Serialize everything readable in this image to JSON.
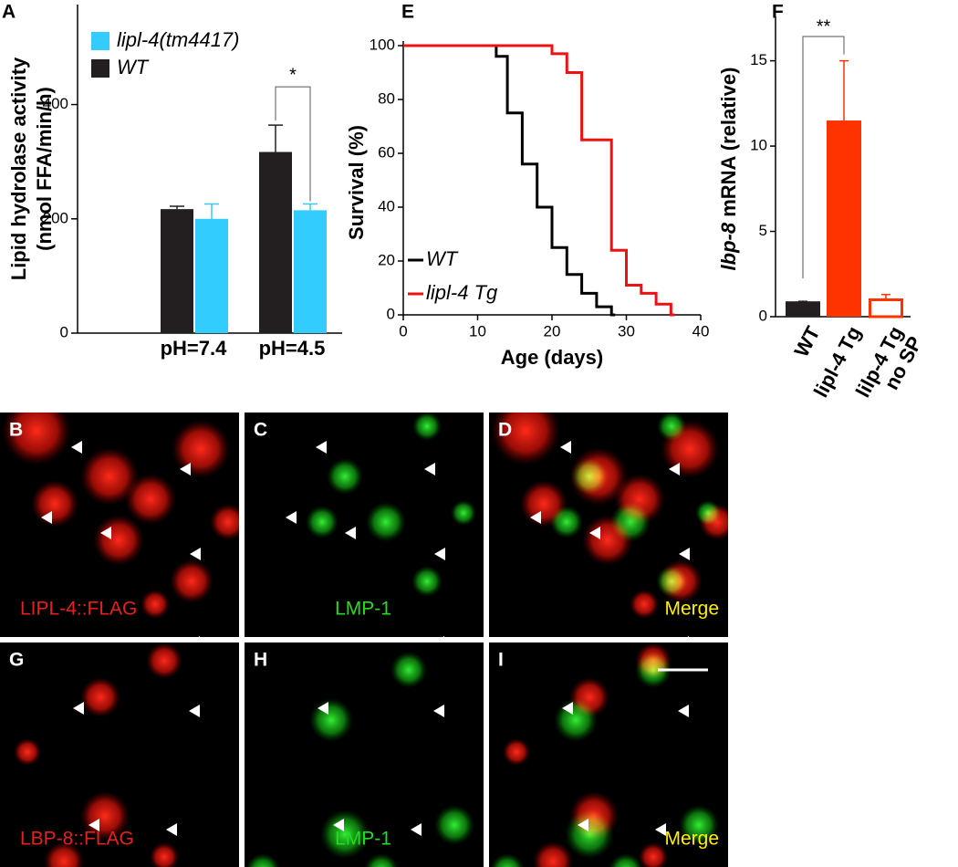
{
  "chart_data": [
    {
      "panel": "A",
      "type": "bar",
      "ylabel": [
        "Lipid hydrolase activity",
        "(nmol FFA/min/h)"
      ],
      "categories": [
        "pH=7.4",
        "pH=4.5"
      ],
      "series": [
        {
          "name": "WT",
          "color": "#231f20",
          "values": [
            217,
            317
          ],
          "errors": [
            5,
            47
          ]
        },
        {
          "name": "lipl-4(tm4417)",
          "color": "#33ccff",
          "values": [
            200,
            215
          ],
          "errors": [
            26,
            11
          ]
        }
      ],
      "ylim": [
        0,
        575
      ],
      "yticks": [
        0,
        200,
        400
      ],
      "annotations": [
        "*"
      ]
    },
    {
      "panel": "E",
      "type": "line",
      "step": true,
      "xlabel": "Age (days)",
      "ylabel": "Survival (%)",
      "series": [
        {
          "name": "WT",
          "color": "#000000",
          "x": [
            0,
            12.5,
            14,
            16,
            18,
            20,
            22,
            24,
            26,
            28
          ],
          "values": [
            100,
            96,
            75,
            56,
            40,
            25,
            15,
            8,
            3,
            0
          ]
        },
        {
          "name": "lipl-4 Tg",
          "color": "#ee1111",
          "x": [
            0,
            20,
            22,
            24,
            28,
            30,
            32,
            34,
            36
          ],
          "values": [
            100,
            97,
            90,
            65,
            24,
            11,
            8,
            4,
            0
          ]
        }
      ],
      "xlim": [
        0,
        40
      ],
      "xticks": [
        0,
        10,
        20,
        30,
        40
      ],
      "ylim": [
        0,
        100
      ],
      "yticks": [
        0,
        20,
        40,
        60,
        80,
        100
      ]
    },
    {
      "panel": "F",
      "type": "bar",
      "ylabel": [
        "lbp-8",
        " mRNA (relative)"
      ],
      "categories": [
        "WT",
        "lipl-4 Tg",
        [
          "lilp-4 Tg",
          "no SP"
        ]
      ],
      "values": [
        0.9,
        11.5,
        1.07
      ],
      "errors": [
        0,
        3.5,
        0.23
      ],
      "colors": [
        "#231f20",
        "#ff3300",
        "#ff3300"
      ],
      "hollow": [
        false,
        false,
        true
      ],
      "ylim": [
        0,
        17.6
      ],
      "yticks": [
        0,
        5,
        10,
        15
      ],
      "annotations": [
        "**"
      ]
    }
  ],
  "panels": [
    {
      "letter": "B",
      "caption": "LIPL-4::FLAG",
      "caption_color": "#e8201c"
    },
    {
      "letter": "C",
      "caption": "LMP-1",
      "caption_color": "#22dd22"
    },
    {
      "letter": "D",
      "caption": "Merge",
      "caption_color": "#ffee00"
    },
    {
      "letter": "G",
      "caption": "LBP-8::FLAG",
      "caption_color": "#e8201c"
    },
    {
      "letter": "H",
      "caption": "LMP-1",
      "caption_color": "#22dd22"
    },
    {
      "letter": "I",
      "caption": "Merge",
      "caption_color": "#ffee00"
    }
  ]
}
